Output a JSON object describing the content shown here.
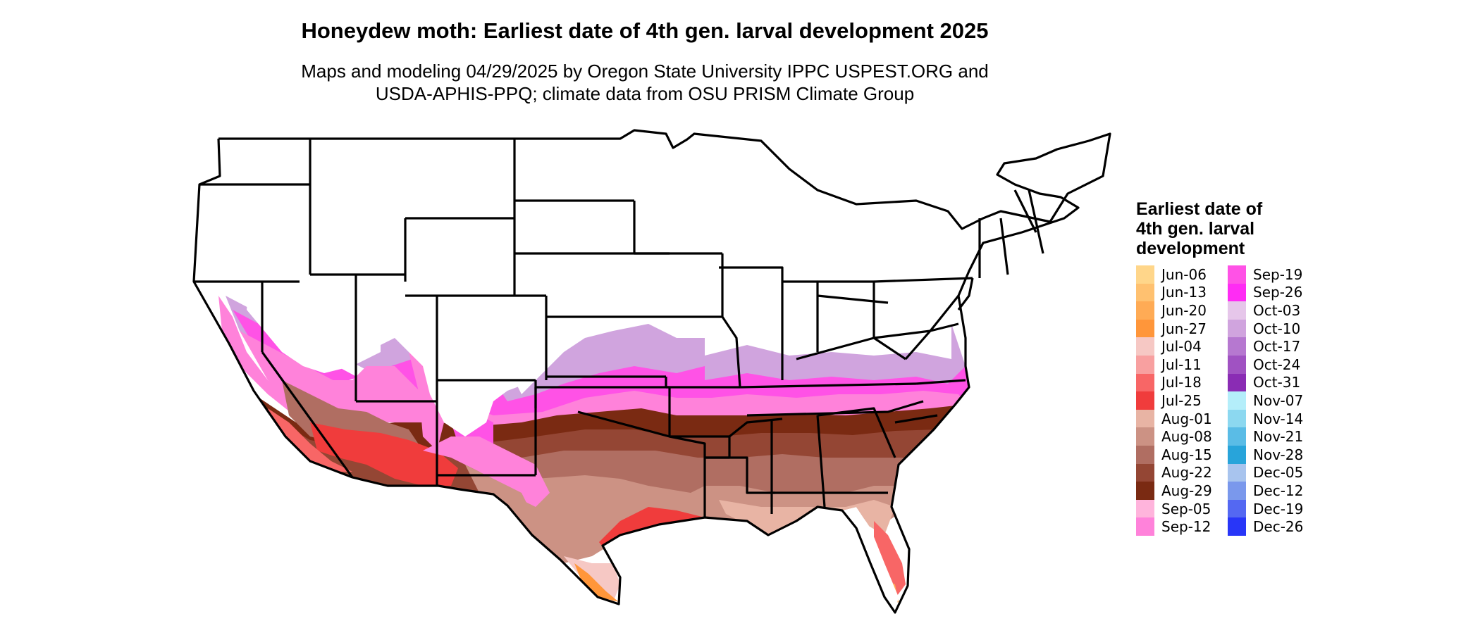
{
  "title": "Honeydew moth: Earliest date of 4th gen. larval development 2025",
  "subtitle": [
    "Maps and modeling 04/29/2025 by Oregon State University IPPC USPEST.ORG and",
    "USDA-APHIS-PPQ; climate data from OSU PRISM Climate Group"
  ],
  "legend": {
    "title": "Earliest date of 4th gen. larval development",
    "items": [
      {
        "label": "Jun-06",
        "color": "#FFD68A"
      },
      {
        "label": "Jun-13",
        "color": "#FFC170"
      },
      {
        "label": "Jun-20",
        "color": "#FFAB55"
      },
      {
        "label": "Jun-27",
        "color": "#FF963A"
      },
      {
        "label": "Jul-04",
        "color": "#F6C8C4"
      },
      {
        "label": "Jul-11",
        "color": "#F8A0A0"
      },
      {
        "label": "Jul-18",
        "color": "#F86666"
      },
      {
        "label": "Jul-25",
        "color": "#F03C3C"
      },
      {
        "label": "Aug-01",
        "color": "#E8B4A4"
      },
      {
        "label": "Aug-08",
        "color": "#CC9284"
      },
      {
        "label": "Aug-15",
        "color": "#B06E62"
      },
      {
        "label": "Aug-22",
        "color": "#944634"
      },
      {
        "label": "Aug-29",
        "color": "#7A2A12"
      },
      {
        "label": "Sep-05",
        "color": "#FFB4DC"
      },
      {
        "label": "Sep-12",
        "color": "#FF82DA"
      },
      {
        "label": "Sep-19",
        "color": "#FF52E6"
      },
      {
        "label": "Sep-26",
        "color": "#FF2CF4"
      },
      {
        "label": "Oct-03",
        "color": "#E6C6EA"
      },
      {
        "label": "Oct-10",
        "color": "#D0A4DE"
      },
      {
        "label": "Oct-17",
        "color": "#B678D0"
      },
      {
        "label": "Oct-24",
        "color": "#A052C2"
      },
      {
        "label": "Oct-31",
        "color": "#8A2CB4"
      },
      {
        "label": "Nov-07",
        "color": "#B4EEFA"
      },
      {
        "label": "Nov-14",
        "color": "#8CD8F0"
      },
      {
        "label": "Nov-21",
        "color": "#5ABCE6"
      },
      {
        "label": "Nov-28",
        "color": "#28A4DA"
      },
      {
        "label": "Dec-05",
        "color": "#A8C4EE"
      },
      {
        "label": "Dec-12",
        "color": "#7A98EC"
      },
      {
        "label": "Dec-19",
        "color": "#5468F2"
      },
      {
        "label": "Dec-26",
        "color": "#2836F8"
      }
    ]
  }
}
